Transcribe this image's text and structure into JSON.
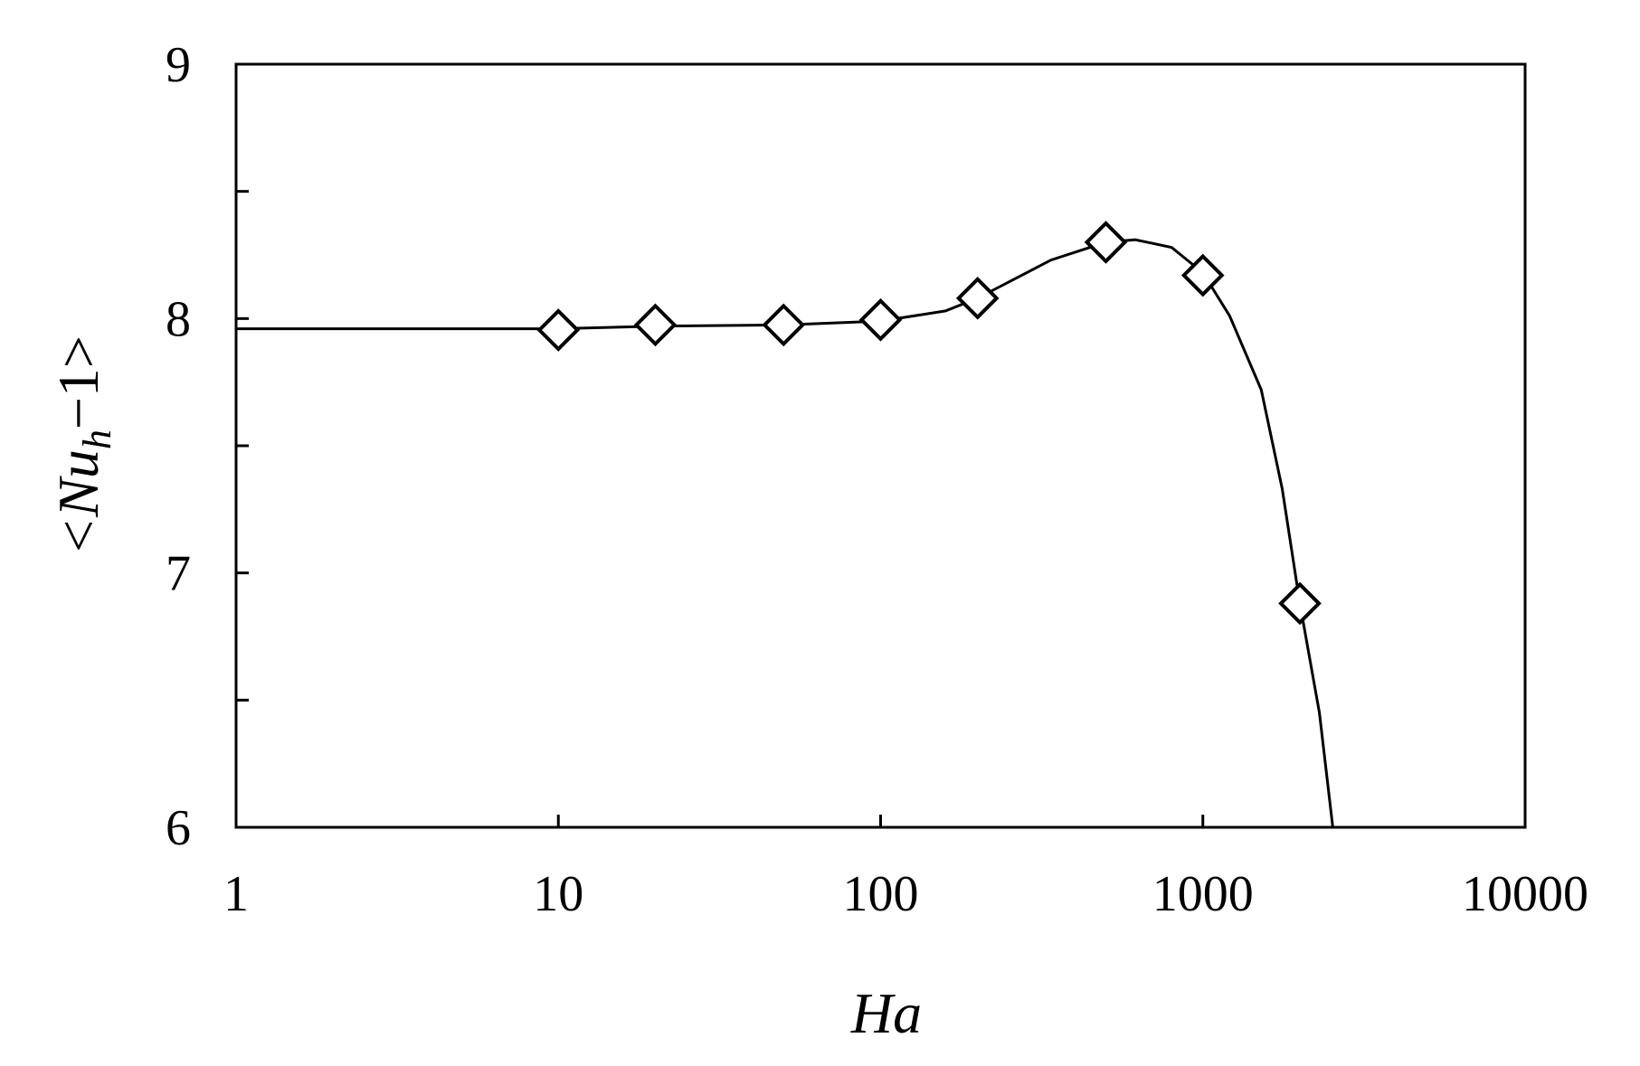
{
  "chart_data": {
    "type": "scatter",
    "xlabel": "Ha",
    "ylabel": "<Nu",
    "ylabel_subscript": "h",
    "ylabel_end": "−1>",
    "x": [
      10,
      20,
      50,
      100,
      200,
      500,
      1000,
      2000
    ],
    "values": [
      7.955,
      7.975,
      7.975,
      7.995,
      8.08,
      8.3,
      8.17,
      6.88
    ],
    "marker": "diamond",
    "color": "#000000",
    "curve": {
      "x": [
        1,
        10,
        20,
        50,
        100,
        159,
        200,
        338,
        500,
        617,
        800,
        1000,
        1211,
        1518,
        1763,
        2000,
        2300,
        2530
      ],
      "values": [
        7.96,
        7.96,
        7.97,
        7.975,
        7.99,
        8.03,
        8.08,
        8.23,
        8.3,
        8.31,
        8.28,
        8.18,
        8.01,
        7.72,
        7.33,
        6.88,
        6.45,
        6.0
      ]
    },
    "xscale": "log",
    "xlim": [
      1,
      10000
    ],
    "xticks": [
      1,
      10,
      100,
      1000,
      10000
    ],
    "ylim": [
      6,
      9
    ],
    "yticks": [
      6,
      7,
      8,
      9
    ],
    "yminor_ticks": [
      6.5,
      7.5,
      8.5
    ]
  }
}
